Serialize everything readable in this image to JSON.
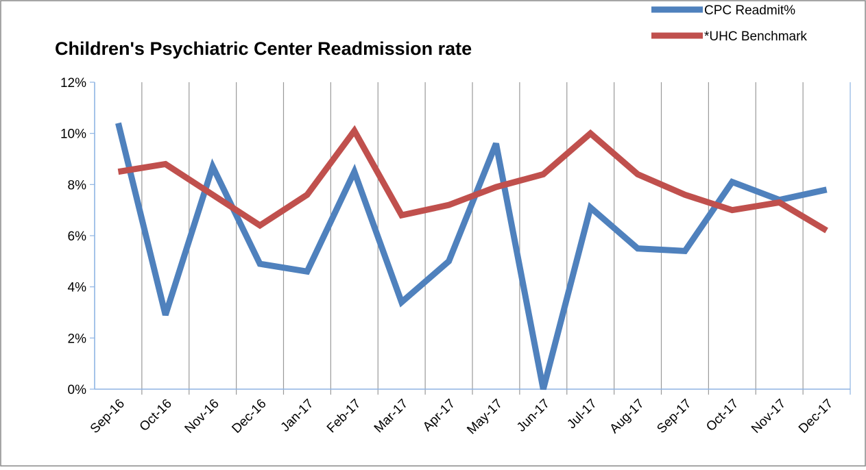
{
  "chart_data": {
    "type": "line",
    "title": "Children's Psychiatric Center Readmission rate",
    "categories": [
      "Sep-16",
      "Oct-16",
      "Nov-16",
      "Dec-16",
      "Jan-17",
      "Feb-17",
      "Mar-17",
      "Apr-17",
      "May-17",
      "Jun-17",
      "Jul-17",
      "Aug-17",
      "Sep-17",
      "Oct-17",
      "Nov-17",
      "Dec-17"
    ],
    "series": [
      {
        "name": "CPC Readmit%",
        "color": "#4f81bd",
        "values": [
          10.4,
          2.9,
          8.7,
          4.9,
          4.6,
          8.5,
          3.4,
          5.0,
          9.6,
          0,
          7.1,
          5.5,
          5.4,
          8.1,
          7.4,
          7.8
        ]
      },
      {
        "name": "*UHC Benchmark",
        "color": "#c0504d",
        "values": [
          8.5,
          8.8,
          7.6,
          6.4,
          7.6,
          10.1,
          6.8,
          7.2,
          7.9,
          8.4,
          10.0,
          8.4,
          7.6,
          7.0,
          7.3,
          6.2
        ]
      }
    ],
    "ylim": [
      0,
      12
    ],
    "yticks": [
      {
        "value": 0,
        "label": "0%"
      },
      {
        "value": 2,
        "label": "2%"
      },
      {
        "value": 4,
        "label": "4%"
      },
      {
        "value": 6,
        "label": "6%"
      },
      {
        "value": 8,
        "label": "8%"
      },
      {
        "value": 10,
        "label": "10%"
      },
      {
        "value": 12,
        "label": "12%"
      }
    ],
    "grid": "x",
    "legend": "top-right"
  }
}
